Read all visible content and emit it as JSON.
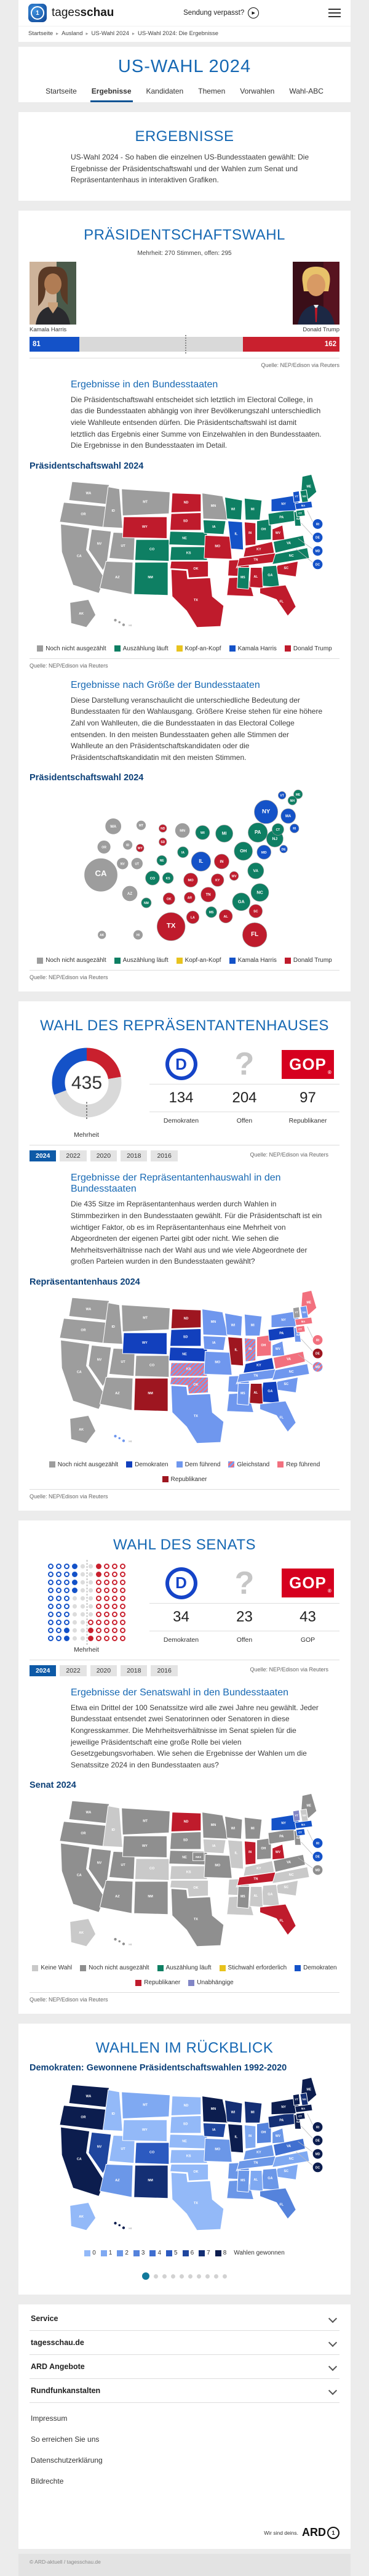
{
  "header": {
    "brand_light": "tages",
    "brand_bold": "schau",
    "sendung": "Sendung verpasst?"
  },
  "breadcrumb": [
    "Startseite",
    "Ausland",
    "US-Wahl 2024",
    "US-Wahl 2024: Die Ergebnisse"
  ],
  "hero": {
    "title": "US-WAHL 2024",
    "tabs": [
      "Startseite",
      "Ergebnisse",
      "Kandidaten",
      "Themen",
      "Vorwahlen",
      "Wahl-ABC"
    ],
    "active_tab": "Ergebnisse"
  },
  "intro": {
    "heading": "ERGEBNISSE",
    "text": "US-Wahl 2024 - So haben die einzelnen US-Bundesstaaten gewählt: Die Ergebnisse der Präsidentschaftswahl und der Wahlen zum Senat und Repräsentantenhaus in interaktiven Grafiken."
  },
  "source": "Quelle: NEP/Edison via Reuters",
  "president": {
    "heading": "PRÄSIDENTSCHAFTSWAHL",
    "majority_note": "Mehrheit: 270 Stimmen, offen: 295",
    "total": 538,
    "majority": 270,
    "harris": {
      "name": "Kamala Harris",
      "votes": 81
    },
    "trump": {
      "name": "Donald Trump",
      "votes": 162
    }
  },
  "sections": {
    "states": {
      "heading": "Ergebnisse in den Bundesstaaten",
      "text": "Die Präsidentschaftswahl entscheidet sich letztlich im Electoral College, in das die Bundesstaaten abhängig von ihrer Bevölkerungszahl unterschiedlich viele Wahlleute entsenden dürfen. Die Präsidentschaftswahl ist damit letztlich das Ergebnis einer Summe von Einzelwahlen in den Bundesstaaten. Die Ergebnisse in den Bundesstaaten im Detail.",
      "map_title": "Präsidentschaftswahl 2024"
    },
    "size": {
      "heading": "Ergebnisse nach Größe der Bundesstaaten",
      "text": "Diese Darstellung veranschaulicht die unterschiedliche Bedeutung der Bundesstaaten für den Wahlausgang. Größere Kreise stehen für eine höhere Zahl von Wahlleuten, die die Bundesstaaten in das Electoral College entsenden. In den meisten Bundesstaaten gehen alle Stimmen der Wahlleute an den Präsidentschaftskandidaten oder die Präsidentschaftskandidatin mit den meisten Stimmen.",
      "map_title": "Präsidentschaftswahl 2024"
    },
    "house_states": {
      "heading": "Ergebnisse der Repräsentantenhauswahl in den Bundesstaaten",
      "text": "Die 435 Sitze im Repräsentantenhaus werden durch Wahlen in Stimmbezirken in den Bundesstaaten gewählt. Für die Präsidentschaft ist ein wichtiger Faktor, ob es im Repräsentantenhaus eine Mehrheit von Abgeordneten der eigenen Partei gibt oder nicht. Wie sehen die Mehrheitsverhältnisse nach der Wahl aus und wie viele Abgeordnete der großen Parteien wurden in den Bundesstaaten gewählt?",
      "map_title": "Repräsentantenhaus 2024"
    },
    "senate_states": {
      "heading": "Ergebnisse der Senatswahl in den Bundesstaaten",
      "text": "Etwa ein Drittel der 100 Senatssitze wird alle zwei Jahre neu gewählt. Jeder Bundesstaat entsendet zwei Senatorinnen oder Senatoren in diese Kongresskammer. Die Mehrheitsverhältnisse im Senat spielen für die jeweilige Präsidentschaft eine große Rolle bei vielen Gesetzgebungsvorhaben. Wie sehen die Ergebnisse der Wahlen um die Senatssitze 2024 in den Bundesstaaten aus?",
      "map_title": "Senat 2024"
    }
  },
  "house": {
    "heading": "WAHL DES REPRÄSENTANTENHAUSES",
    "total": "435",
    "mehrheit_label": "Mehrheit",
    "cols": [
      {
        "logo": "D",
        "value": "134",
        "label": "Demokraten"
      },
      {
        "logo": "?",
        "value": "204",
        "label": "Offen"
      },
      {
        "logo": "GOP",
        "reg": "®",
        "value": "97",
        "label": "Republikaner"
      }
    ],
    "segments": [
      {
        "value": 97,
        "color": "#c9202e"
      },
      {
        "value": 204,
        "color": "#d9d9d9"
      },
      {
        "value": 134,
        "color": "#1452c8"
      }
    ],
    "years": [
      "2024",
      "2022",
      "2020",
      "2018",
      "2016"
    ],
    "active_year": "2024"
  },
  "senate": {
    "heading": "WAHL DES SENATS",
    "mehrheit_label": "Mehrheit",
    "rows": [
      "BBBbGGrRRR",
      "BBBbGGrRRR",
      "BBBbGGRRRR",
      "BBBbGGRRRR",
      "BBBGGGRRRR",
      "BBBGGGRRRR",
      "BBBGGGRRRR",
      "BBBGGRRRRR",
      "BBbGGrRRRR",
      "BBbGGrRRRR"
    ],
    "cols": [
      {
        "logo": "D",
        "value": "34",
        "label": "Demokraten"
      },
      {
        "logo": "?",
        "value": "23",
        "label": "Offen"
      },
      {
        "logo": "GOP",
        "reg": "®",
        "value": "43",
        "label": "GOP"
      }
    ],
    "years": [
      "2024",
      "2022",
      "2020",
      "2018",
      "2016"
    ],
    "active_year": "2024"
  },
  "retro": {
    "heading": "WAHLEN IM RÜCKBLICK",
    "subtitle": "Demokraten: Gewonnene Präsidentschaftswahlen 1992-2020",
    "scale_caption": "Wahlen gewonnen",
    "carousel": {
      "count": 10,
      "active": 0
    }
  },
  "legends": {
    "president": [
      {
        "c": "#9d9d9d",
        "l": "Noch nicht ausgezählt"
      },
      {
        "c": "#0e7f63",
        "l": "Auszählung läuft"
      },
      {
        "c": "#e8c31e",
        "l": "Kopf-an-Kopf"
      },
      {
        "c": "#1452c8",
        "l": "Kamala Harris"
      },
      {
        "c": "#bf1b2c",
        "l": "Donald Trump"
      }
    ],
    "house": [
      {
        "c": "#9d9d9d",
        "l": "Noch nicht ausgezählt"
      },
      {
        "c": "#1240bd",
        "l": "Demokraten"
      },
      {
        "c": "#6f97ee",
        "l": "Dem führend"
      },
      {
        "c": "HATCH",
        "l": "Gleichstand"
      },
      {
        "c": "#f2707e",
        "l": "Rep führend"
      },
      {
        "c": "#9e1620",
        "l": "Republikaner"
      }
    ],
    "senate": [
      {
        "c": "#c9c9c9",
        "l": "Keine Wahl"
      },
      {
        "c": "#8f8f8f",
        "l": "Noch nicht ausgezählt"
      },
      {
        "c": "#0e7f63",
        "l": "Auszählung läuft"
      },
      {
        "c": "#e8c31e",
        "l": "Stichwahl erforderlich"
      },
      {
        "c": "#1452c8",
        "l": "Demokraten"
      },
      {
        "c": "#bf1b2c",
        "l": "Republikaner"
      },
      {
        "c": "#8286c6",
        "l": "Unabhängige"
      }
    ]
  },
  "maps": {
    "president": {
      "palette": {
        "none": "#9d9d9d",
        "counting": "#0e7f63",
        "tie": "#e8c31e",
        "harris": "#1452c8",
        "trump": "#bf1b2c"
      },
      "states": {
        "WA": "none",
        "OR": "none",
        "CA": "none",
        "NV": "none",
        "ID": "none",
        "UT": "none",
        "AZ": "none",
        "MT": "none",
        "MN": "none",
        "AK": "none",
        "HI": "none",
        "WI": "counting",
        "MI": "counting",
        "IA": "counting",
        "NE": "counting",
        "CO": "counting",
        "KS": "counting",
        "NM": "counting",
        "OH": "counting",
        "PA": "counting",
        "NJ": "counting",
        "VA": "counting",
        "NC": "counting",
        "GA": "counting",
        "MS": "counting",
        "CT": "counting",
        "NH": "counting",
        "ME": "counting",
        "IL": "harris",
        "NY": "harris",
        "VT": "harris",
        "MA": "harris",
        "ND": "trump",
        "SD": "trump",
        "WY": "trump",
        "MO": "trump",
        "OK": "trump",
        "TX": "trump",
        "AR": "trump",
        "LA": "trump",
        "AL": "trump",
        "TN": "trump",
        "KY": "trump",
        "IN": "trump",
        "WV": "trump",
        "SC": "trump",
        "FL": "trump"
      },
      "circles": {
        "RI": "harris",
        "DE": "harris",
        "MD": "harris",
        "DC": "harris"
      }
    },
    "bubbles": [
      {
        "id": "CA",
        "ev": 54,
        "cat": "none"
      },
      {
        "id": "TX",
        "ev": 40,
        "cat": "trump"
      },
      {
        "id": "FL",
        "ev": 30,
        "cat": "trump"
      },
      {
        "id": "NY",
        "ev": 28,
        "cat": "harris"
      },
      {
        "id": "IL",
        "ev": 19,
        "cat": "harris"
      },
      {
        "id": "PA",
        "ev": 19,
        "cat": "counting"
      },
      {
        "id": "OH",
        "ev": 17,
        "cat": "counting"
      },
      {
        "id": "GA",
        "ev": 16,
        "cat": "counting"
      },
      {
        "id": "NC",
        "ev": 16,
        "cat": "counting"
      },
      {
        "id": "MI",
        "ev": 15,
        "cat": "counting"
      },
      {
        "id": "NJ",
        "ev": 14,
        "cat": "counting"
      },
      {
        "id": "VA",
        "ev": 13,
        "cat": "counting"
      },
      {
        "id": "WA",
        "ev": 12,
        "cat": "none"
      },
      {
        "id": "AZ",
        "ev": 11,
        "cat": "none"
      },
      {
        "id": "IN",
        "ev": 11,
        "cat": "trump"
      },
      {
        "id": "MA",
        "ev": 11,
        "cat": "harris"
      },
      {
        "id": "TN",
        "ev": 11,
        "cat": "trump"
      },
      {
        "id": "MD",
        "ev": 10,
        "cat": "harris"
      },
      {
        "id": "MN",
        "ev": 10,
        "cat": "none"
      },
      {
        "id": "MO",
        "ev": 10,
        "cat": "trump"
      },
      {
        "id": "WI",
        "ev": 10,
        "cat": "counting"
      },
      {
        "id": "CO",
        "ev": 10,
        "cat": "counting"
      },
      {
        "id": "AL",
        "ev": 9,
        "cat": "trump"
      },
      {
        "id": "SC",
        "ev": 9,
        "cat": "trump"
      },
      {
        "id": "KY",
        "ev": 8,
        "cat": "trump"
      },
      {
        "id": "LA",
        "ev": 8,
        "cat": "trump"
      },
      {
        "id": "OR",
        "ev": 8,
        "cat": "none"
      },
      {
        "id": "CT",
        "ev": 7,
        "cat": "counting"
      },
      {
        "id": "OK",
        "ev": 7,
        "cat": "trump"
      },
      {
        "id": "AR",
        "ev": 6,
        "cat": "trump"
      },
      {
        "id": "IA",
        "ev": 6,
        "cat": "counting"
      },
      {
        "id": "KS",
        "ev": 6,
        "cat": "counting"
      },
      {
        "id": "MS",
        "ev": 6,
        "cat": "counting"
      },
      {
        "id": "NV",
        "ev": 6,
        "cat": "none"
      },
      {
        "id": "UT",
        "ev": 6,
        "cat": "none"
      },
      {
        "id": "NE",
        "ev": 5,
        "cat": "counting"
      },
      {
        "id": "NM",
        "ev": 5,
        "cat": "counting"
      },
      {
        "id": "WV",
        "ev": 4,
        "cat": "trump"
      },
      {
        "id": "HI",
        "ev": 4,
        "cat": "none"
      },
      {
        "id": "ID",
        "ev": 4,
        "cat": "none"
      },
      {
        "id": "ME",
        "ev": 4,
        "cat": "counting"
      },
      {
        "id": "MT",
        "ev": 4,
        "cat": "none"
      },
      {
        "id": "NH",
        "ev": 4,
        "cat": "counting"
      },
      {
        "id": "RI",
        "ev": 4,
        "cat": "harris"
      },
      {
        "id": "AK",
        "ev": 3,
        "cat": "none"
      },
      {
        "id": "DE",
        "ev": 3,
        "cat": "harris"
      },
      {
        "id": "ND",
        "ev": 3,
        "cat": "trump"
      },
      {
        "id": "SD",
        "ev": 3,
        "cat": "trump"
      },
      {
        "id": "VT",
        "ev": 3,
        "cat": "harris"
      },
      {
        "id": "WY",
        "ev": 3,
        "cat": "trump"
      }
    ],
    "house": {
      "palette": {
        "none": "#9d9d9d",
        "dem": "#1240bd",
        "demlead": "#6f97ee",
        "tie": "HATCH",
        "replead": "#f2707e",
        "rep": "#9e1620"
      },
      "states": {
        "WA": "none",
        "OR": "none",
        "CA": "none",
        "NV": "none",
        "ID": "none",
        "UT": "none",
        "AZ": "none",
        "MT": "none",
        "CO": "none",
        "AK": "none",
        "VT": "none",
        "WY": "dem",
        "SD": "dem",
        "NE": "dem",
        "PA": "dem",
        "KY": "dem",
        "GA": "dem",
        "ND": "rep",
        "NM": "rep",
        "IL": "rep",
        "AL": "rep",
        "KS": "tie",
        "OK": "tie",
        "IN": "tie",
        "OH": "replead",
        "VA": "replead",
        "ME": "replead",
        "MA": "replead",
        "CT": "replead",
        "MN": "demlead",
        "WI": "demlead",
        "MI": "demlead",
        "IA": "demlead",
        "MO": "demlead",
        "AR": "demlead",
        "LA": "demlead",
        "TX": "demlead",
        "MS": "demlead",
        "TN": "demlead",
        "WV": "demlead",
        "NC": "demlead",
        "SC": "demlead",
        "FL": "demlead",
        "NY": "demlead",
        "NJ": "demlead",
        "NH": "demlead",
        "HI": "demlead"
      },
      "circles": {
        "RI": "replead",
        "DE": "rep",
        "MD": "tie"
      }
    },
    "senate": {
      "palette": {
        "nowahl": "#c9c9c9",
        "none": "#8f8f8f",
        "counting": "#0e7f63",
        "runoff": "#e8c31e",
        "dem": "#1452c8",
        "rep": "#bf1b2c",
        "ind": "#8286c6"
      },
      "states": {
        "ID": "nowahl",
        "CO": "nowahl",
        "IA": "nowahl",
        "KS": "nowahl",
        "OK": "nowahl",
        "AR": "nowahl",
        "LA": "nowahl",
        "AL": "nowahl",
        "GA": "nowahl",
        "SC": "nowahl",
        "NC": "nowahl",
        "KY": "nowahl",
        "IL": "nowahl",
        "AK": "nowahl",
        "NH": "nowahl",
        "ND": "rep",
        "IN": "rep",
        "WV": "rep",
        "TN": "rep",
        "FL": "rep",
        "NY": "dem",
        "CT": "dem",
        "MA": "dem",
        "VT": "ind",
        "WA": "none",
        "OR": "none",
        "CA": "none",
        "NV": "none",
        "UT": "none",
        "AZ": "none",
        "MT": "none",
        "WY": "none",
        "NM": "none",
        "SD": "none",
        "NE": "none",
        "TX": "none",
        "MN": "none",
        "WI": "none",
        "MI": "none",
        "MO": "none",
        "MS": "none",
        "OH": "none",
        "PA": "none",
        "VA": "none",
        "NJ": "none",
        "ME": "none",
        "HI": "none"
      },
      "circles": {
        "RI": "dem",
        "DE": "dem",
        "MD": "none"
      },
      "ne2": {
        "label": "NE2",
        "cat": "none"
      }
    },
    "retro": {
      "scale": [
        "#93b9f8",
        "#7fa9f2",
        "#6b97e8",
        "#5583dc",
        "#406fd0",
        "#2c5ac0",
        "#1f469e",
        "#142f74",
        "#0c1d4e"
      ],
      "values": {
        "WA": 8,
        "OR": 8,
        "CA": 8,
        "MN": 8,
        "IL": 8,
        "NY": 8,
        "NJ": 8,
        "MA": 8,
        "VT": 8,
        "CT": 8,
        "ME": 8,
        "HI": 8,
        "WI": 7,
        "MI": 7,
        "PA": 7,
        "NM": 7,
        "NH": 7,
        "NV": 6,
        "IA": 6,
        "CO": 5,
        "VA": 4,
        "OH": 3,
        "FL": 3,
        "AZ": 2,
        "MO": 2,
        "AR": 2,
        "LA": 2,
        "TN": 2,
        "KY": 2,
        "WV": 2,
        "GA": 2,
        "MS": 2,
        "MT": 1,
        "IN": 1,
        "SC": 1,
        "NC": 1,
        "AL": 1,
        "UT": 0,
        "WY": 0,
        "ID": 0,
        "ND": 0,
        "SD": 0,
        "NE": 0,
        "KS": 0,
        "OK": 0,
        "TX": 0,
        "AK": 0
      },
      "circles": {
        "RI": 8,
        "DE": 8,
        "MD": 8,
        "DC": 8
      }
    }
  },
  "footer": {
    "accordions": [
      "Service",
      "tagesschau.de",
      "ARD Angebote",
      "Rundfunkanstalten"
    ],
    "links": [
      "Impressum",
      "So erreichen Sie uns",
      "Datenschutzerklärung",
      "Bildrechte"
    ],
    "ard_claim": "Wir sind deins.",
    "ard": "ARD",
    "copyright": "© ARD-aktuell / tagesschau.de"
  }
}
